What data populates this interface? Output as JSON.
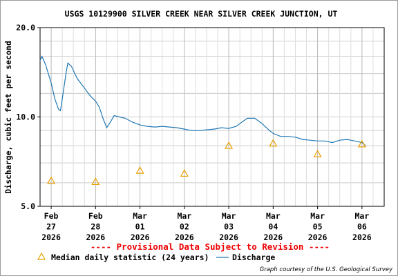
{
  "chart_data": {
    "type": "line",
    "title": "USGS 10129900 SILVER CREEK NEAR SILVER CREEK JUNCTION, UT",
    "ylabel": "Discharge, cubic feet per second",
    "yscale": "log",
    "ylim": [
      5.0,
      20.0
    ],
    "yticks": [
      {
        "value": 5,
        "label": "5.0"
      },
      {
        "value": 10,
        "label": "10.0"
      },
      {
        "value": 20,
        "label": "20.0"
      }
    ],
    "ygrid_values": [
      6,
      7,
      8,
      9,
      12,
      14,
      16,
      18
    ],
    "xlim": [
      "2026-02-26T18:00",
      "2026-03-06T12:00"
    ],
    "xticks": [
      {
        "date": "2026-02-27T00:00",
        "line1": "Feb",
        "line2": "27",
        "line3": "2026"
      },
      {
        "date": "2026-02-28T00:00",
        "line1": "Feb",
        "line2": "28",
        "line3": "2026"
      },
      {
        "date": "2026-03-01T00:00",
        "line1": "Mar",
        "line2": "01",
        "line3": "2026"
      },
      {
        "date": "2026-03-02T00:00",
        "line1": "Mar",
        "line2": "02",
        "line3": "2026"
      },
      {
        "date": "2026-03-03T00:00",
        "line1": "Mar",
        "line2": "03",
        "line3": "2026"
      },
      {
        "date": "2026-03-04T00:00",
        "line1": "Mar",
        "line2": "04",
        "line3": "2026"
      },
      {
        "date": "2026-03-05T00:00",
        "line1": "Mar",
        "line2": "05",
        "line3": "2026"
      },
      {
        "date": "2026-03-06T00:00",
        "line1": "Mar",
        "line2": "06",
        "line3": "2026"
      }
    ],
    "grid": true,
    "provisional_note": "---- Provisional Data Subject to Revision ----",
    "series": [
      {
        "name": "Discharge",
        "color": "#1f77b4",
        "style": "line",
        "points": [
          [
            "2026-02-26T18:00",
            15.5
          ],
          [
            "2026-02-26T19:00",
            16.0
          ],
          [
            "2026-02-26T21:00",
            15.0
          ],
          [
            "2026-02-27T00:00",
            13.0
          ],
          [
            "2026-02-27T02:00",
            11.5
          ],
          [
            "2026-02-27T04:00",
            10.6
          ],
          [
            "2026-02-27T05:00",
            10.5
          ],
          [
            "2026-02-27T06:00",
            11.5
          ],
          [
            "2026-02-27T08:00",
            14.0
          ],
          [
            "2026-02-27T09:00",
            15.2
          ],
          [
            "2026-02-27T11:00",
            14.8
          ],
          [
            "2026-02-27T14:00",
            13.5
          ],
          [
            "2026-02-27T18:00",
            12.5
          ],
          [
            "2026-02-27T21:00",
            11.8
          ],
          [
            "2026-02-28T00:00",
            11.3
          ],
          [
            "2026-02-28T02:00",
            10.8
          ],
          [
            "2026-02-28T04:00",
            9.9
          ],
          [
            "2026-02-28T06:00",
            9.2
          ],
          [
            "2026-02-28T08:00",
            9.6
          ],
          [
            "2026-02-28T10:00",
            10.1
          ],
          [
            "2026-02-28T13:00",
            10.0
          ],
          [
            "2026-02-28T16:00",
            9.9
          ],
          [
            "2026-02-28T20:00",
            9.6
          ],
          [
            "2026-03-01T00:00",
            9.4
          ],
          [
            "2026-03-01T04:00",
            9.3
          ],
          [
            "2026-03-01T08:00",
            9.25
          ],
          [
            "2026-03-01T12:00",
            9.3
          ],
          [
            "2026-03-01T16:00",
            9.25
          ],
          [
            "2026-03-01T20:00",
            9.2
          ],
          [
            "2026-03-02T00:00",
            9.1
          ],
          [
            "2026-03-02T04:00",
            9.0
          ],
          [
            "2026-03-02T08:00",
            9.0
          ],
          [
            "2026-03-02T12:00",
            9.05
          ],
          [
            "2026-03-02T16:00",
            9.1
          ],
          [
            "2026-03-02T20:00",
            9.2
          ],
          [
            "2026-03-03T00:00",
            9.15
          ],
          [
            "2026-03-03T04:00",
            9.3
          ],
          [
            "2026-03-03T08:00",
            9.7
          ],
          [
            "2026-03-03T10:00",
            9.9
          ],
          [
            "2026-03-03T14:00",
            9.9
          ],
          [
            "2026-03-03T18:00",
            9.5
          ],
          [
            "2026-03-03T22:00",
            9.0
          ],
          [
            "2026-03-04T00:00",
            8.8
          ],
          [
            "2026-03-04T04:00",
            8.6
          ],
          [
            "2026-03-04T08:00",
            8.6
          ],
          [
            "2026-03-04T12:00",
            8.55
          ],
          [
            "2026-03-04T16:00",
            8.4
          ],
          [
            "2026-03-04T20:00",
            8.35
          ],
          [
            "2026-03-05T00:00",
            8.3
          ],
          [
            "2026-03-05T04:00",
            8.3
          ],
          [
            "2026-03-05T08:00",
            8.2
          ],
          [
            "2026-03-05T12:00",
            8.35
          ],
          [
            "2026-03-05T16:00",
            8.4
          ],
          [
            "2026-03-05T20:00",
            8.3
          ],
          [
            "2026-03-06T00:00",
            8.2
          ],
          [
            "2026-03-06T02:00",
            8.0
          ]
        ]
      },
      {
        "name": "Median daily statistic (24 years)",
        "color": "#e8a000",
        "style": "triangle",
        "points": [
          [
            "2026-02-27T00:00",
            6.1
          ],
          [
            "2026-02-28T00:00",
            6.05
          ],
          [
            "2026-03-01T00:00",
            6.6
          ],
          [
            "2026-03-02T00:00",
            6.45
          ],
          [
            "2026-03-03T00:00",
            8.0
          ],
          [
            "2026-03-04T00:00",
            8.15
          ],
          [
            "2026-03-05T00:00",
            7.5
          ],
          [
            "2026-03-06T00:00",
            8.1
          ]
        ]
      }
    ],
    "legend_position": "bottom",
    "credit": "Graph courtesy of the U.S. Geological Survey"
  }
}
